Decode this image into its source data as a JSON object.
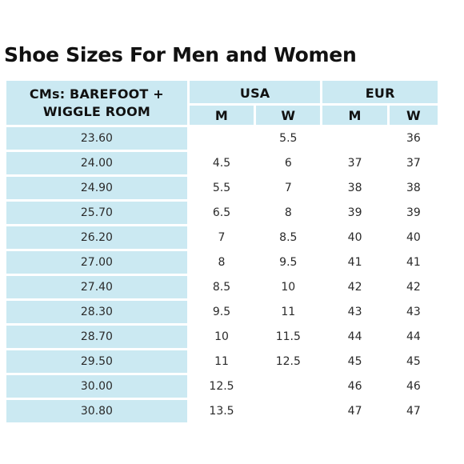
{
  "title": "Shoe Sizes For Men and Women",
  "headers": {
    "cm_line1": "CMs: BAREFOOT +",
    "cm_line2": "WIGGLE ROOM",
    "usa": "USA",
    "eur": "EUR",
    "usa_m": "M",
    "usa_w": "W",
    "eur_m": "M",
    "eur_w": "W"
  },
  "rows": [
    {
      "cm": "23.60",
      "usa_m": "",
      "usa_w": "5.5",
      "eur_m": "",
      "eur_w": "36"
    },
    {
      "cm": "24.00",
      "usa_m": "4.5",
      "usa_w": "6",
      "eur_m": "37",
      "eur_w": "37"
    },
    {
      "cm": "24.90",
      "usa_m": "5.5",
      "usa_w": "7",
      "eur_m": "38",
      "eur_w": "38"
    },
    {
      "cm": "25.70",
      "usa_m": "6.5",
      "usa_w": "8",
      "eur_m": "39",
      "eur_w": "39"
    },
    {
      "cm": "26.20",
      "usa_m": "7",
      "usa_w": "8.5",
      "eur_m": "40",
      "eur_w": "40"
    },
    {
      "cm": "27.00",
      "usa_m": "8",
      "usa_w": "9.5",
      "eur_m": "41",
      "eur_w": "41"
    },
    {
      "cm": "27.40",
      "usa_m": "8.5",
      "usa_w": "10",
      "eur_m": "42",
      "eur_w": "42"
    },
    {
      "cm": "28.30",
      "usa_m": "9.5",
      "usa_w": "11",
      "eur_m": "43",
      "eur_w": "43"
    },
    {
      "cm": "28.70",
      "usa_m": "10",
      "usa_w": "11.5",
      "eur_m": "44",
      "eur_w": "44"
    },
    {
      "cm": "29.50",
      "usa_m": "11",
      "usa_w": "12.5",
      "eur_m": "45",
      "eur_w": "45"
    },
    {
      "cm": "30.00",
      "usa_m": "12.5",
      "usa_w": "",
      "eur_m": "46",
      "eur_w": "46"
    },
    {
      "cm": "30.80",
      "usa_m": "13.5",
      "usa_w": "",
      "eur_m": "47",
      "eur_w": "47"
    }
  ],
  "colors": {
    "header_bg": "#cbe9f2",
    "cell_bg": "#ffffff",
    "text": "#2a2a2a"
  }
}
